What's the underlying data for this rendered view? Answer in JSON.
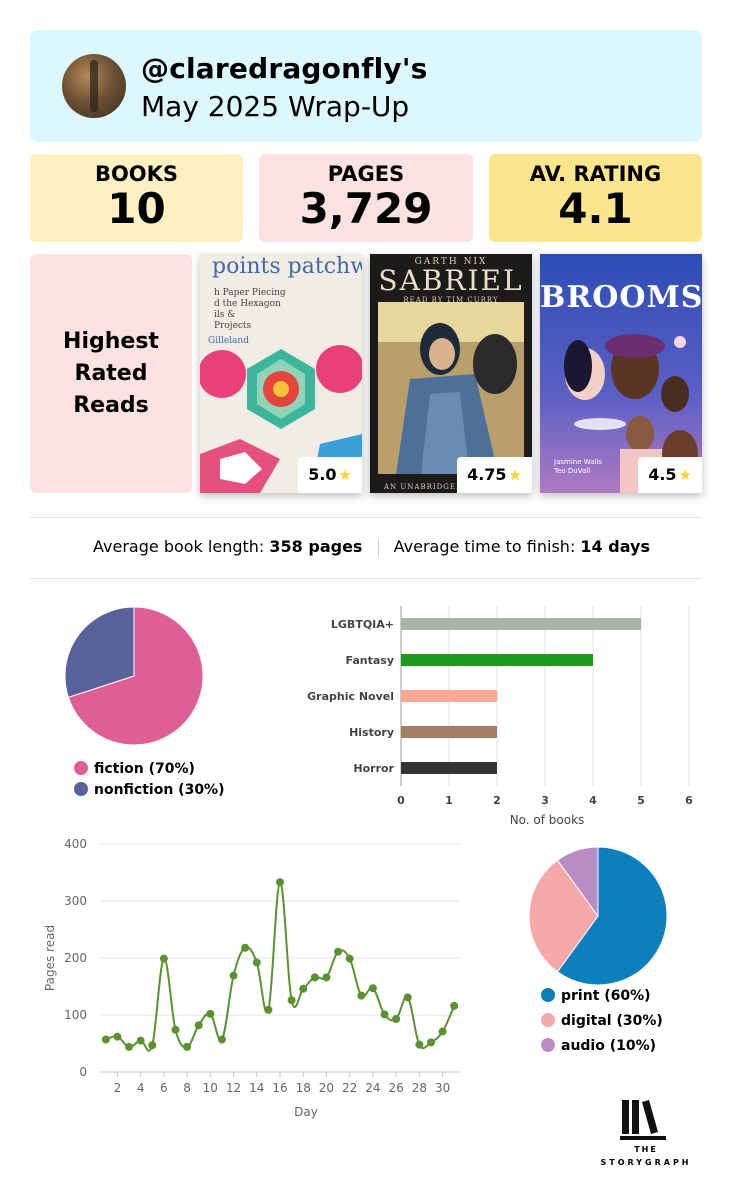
{
  "header": {
    "username": "@claredragonfly's",
    "subtitle": "May 2025 Wrap-Up"
  },
  "stats": {
    "books_label": "BOOKS",
    "books_value": "10",
    "pages_label": "PAGES",
    "pages_value": "3,729",
    "rating_label": "AV. RATING",
    "rating_value": "4.1"
  },
  "highest_rated": {
    "title": "Highest Rated Reads",
    "books": [
      {
        "cover_text": "points patchwo",
        "cover_lines": [
          "h Paper Piecing",
          "d the Hexagon",
          "ils &",
          "Projects",
          "Gilleland"
        ],
        "rating": "5.0"
      },
      {
        "cover_author": "GARTH NIX",
        "cover_title": "SABRIEL",
        "cover_narrator": "READ BY TIM CURRY",
        "cover_footer": "AN UNABRIDGED",
        "rating": "4.75"
      },
      {
        "cover_title": "BROOMS",
        "cover_authors": [
          "Jasmine Walls",
          "Teo DuVall"
        ],
        "rating": "4.5"
      }
    ]
  },
  "summary": {
    "length_label": "Average book length:",
    "length_value": "358 pages",
    "time_label": "Average time to finish:",
    "time_value": "14 days"
  },
  "colors": {
    "fiction": "#dd5f96",
    "nonfiction": "#586199",
    "print": "#0d7fbd",
    "digital": "#f5a9a9",
    "audio": "#b98cc6",
    "line": "#5c9132"
  },
  "chart_data": [
    {
      "type": "pie",
      "labels": [
        "fiction (70%)",
        "nonfiction (30%)"
      ],
      "values": [
        70,
        30
      ],
      "colors": [
        "#dd5f96",
        "#586199"
      ]
    },
    {
      "type": "bar",
      "orientation": "horizontal",
      "categories": [
        "LGBTQIA+",
        "Fantasy",
        "Graphic Novel",
        "History",
        "Horror"
      ],
      "values": [
        5,
        4,
        2,
        2,
        2
      ],
      "colors": [
        "#a7b4a3",
        "#1e9a1e",
        "#f7a993",
        "#a47e64",
        "#333333"
      ],
      "xlabel": "No. of books",
      "xlim": [
        0,
        6
      ],
      "xticks": [
        "0",
        "1",
        "2",
        "3",
        "4",
        "5",
        "6"
      ],
      "grid": true
    },
    {
      "type": "line",
      "x": [
        1,
        2,
        3,
        4,
        5,
        6,
        7,
        8,
        9,
        10,
        11,
        12,
        13,
        14,
        15,
        16,
        17,
        18,
        19,
        20,
        21,
        22,
        23,
        24,
        25,
        26,
        27,
        28,
        29,
        30,
        31
      ],
      "y": [
        57,
        62,
        44,
        55,
        47,
        199,
        74,
        44,
        82,
        102,
        57,
        169,
        218,
        192,
        109,
        333,
        126,
        146,
        166,
        166,
        211,
        199,
        134,
        147,
        101,
        93,
        131,
        48,
        52,
        71,
        116
      ],
      "xlabel": "Day",
      "ylabel": "Pages read",
      "ylim": [
        0,
        400
      ],
      "yticks": [
        "0",
        "100",
        "200",
        "300",
        "400"
      ],
      "xticks": [
        "2",
        "4",
        "6",
        "8",
        "10",
        "12",
        "14",
        "16",
        "18",
        "20",
        "22",
        "24",
        "26",
        "28",
        "30"
      ],
      "color": "#5c9132",
      "grid": true
    },
    {
      "type": "pie",
      "labels": [
        "print (60%)",
        "digital (30%)",
        "audio (10%)"
      ],
      "values": [
        60,
        30,
        10
      ],
      "colors": [
        "#0d7fbd",
        "#f5a9a9",
        "#b98cc6"
      ]
    }
  ],
  "logo": {
    "line1": "THE",
    "line2": "STORYGRAPH"
  }
}
